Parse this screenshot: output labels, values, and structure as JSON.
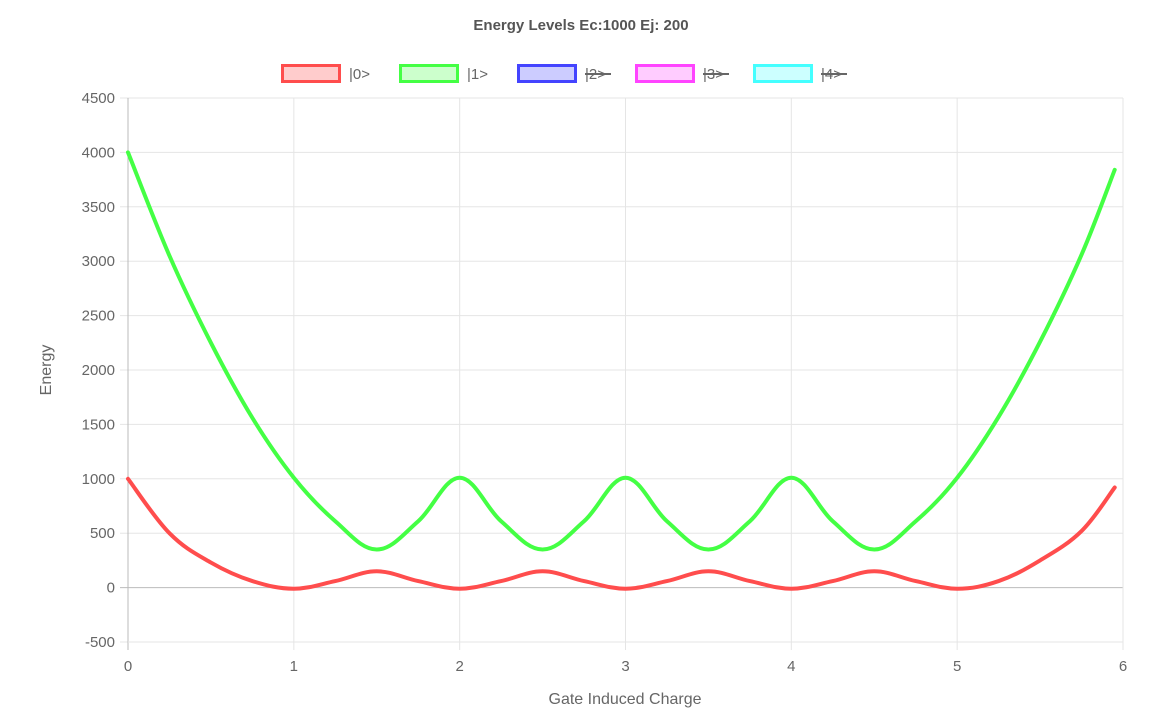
{
  "chart_data": {
    "type": "line",
    "title": "Energy Levels Ec:1000 Ej: 200",
    "xlabel": "Gate Induced Charge",
    "ylabel": "Energy",
    "xlim": [
      0,
      6
    ],
    "ylim": [
      -500,
      4500
    ],
    "x_ticks": [
      "0",
      "1",
      "2",
      "3",
      "4",
      "5",
      "6"
    ],
    "y_ticks": [
      "-500",
      "0",
      "500",
      "1000",
      "1500",
      "2000",
      "2500",
      "3000",
      "3500",
      "4000",
      "4500"
    ],
    "grid": true,
    "legend_position": "top-center",
    "series": [
      {
        "name": "|0>",
        "color": "#ff4d4d",
        "fill": "#ffcccc",
        "hidden": false,
        "x": [
          0,
          0.25,
          0.5,
          0.75,
          1,
          1.25,
          1.5,
          1.75,
          2,
          2.25,
          2.5,
          2.75,
          3,
          3.25,
          3.5,
          3.75,
          4,
          4.25,
          4.5,
          4.75,
          5,
          5.25,
          5.5,
          5.75,
          5.95
        ],
        "y": [
          1000,
          500,
          230,
          60,
          -10,
          60,
          150,
          60,
          -10,
          60,
          150,
          60,
          -10,
          60,
          150,
          60,
          -10,
          60,
          150,
          60,
          -10,
          60,
          250,
          520,
          920
        ]
      },
      {
        "name": "|1>",
        "color": "#44ff44",
        "fill": "#ccffcc",
        "hidden": false,
        "x": [
          0,
          0.25,
          0.5,
          0.75,
          1,
          1.25,
          1.5,
          1.75,
          2,
          2.25,
          2.5,
          2.75,
          3,
          3.25,
          3.5,
          3.75,
          4,
          4.25,
          4.5,
          4.75,
          5,
          5.25,
          5.5,
          5.75,
          5.95
        ],
        "y": [
          4000,
          3050,
          2250,
          1560,
          1010,
          610,
          350,
          610,
          1010,
          610,
          350,
          610,
          1010,
          610,
          350,
          610,
          1010,
          610,
          350,
          610,
          1010,
          1570,
          2260,
          3060,
          3840
        ]
      },
      {
        "name": "|2>",
        "color": "#4444ff",
        "fill": "#ccccff",
        "hidden": true,
        "x": [],
        "y": []
      },
      {
        "name": "|3>",
        "color": "#ff44ff",
        "fill": "#ffccff",
        "hidden": true,
        "x": [],
        "y": []
      },
      {
        "name": "|4>",
        "color": "#44ffff",
        "fill": "#ccffff",
        "hidden": true,
        "x": [],
        "y": []
      }
    ]
  }
}
